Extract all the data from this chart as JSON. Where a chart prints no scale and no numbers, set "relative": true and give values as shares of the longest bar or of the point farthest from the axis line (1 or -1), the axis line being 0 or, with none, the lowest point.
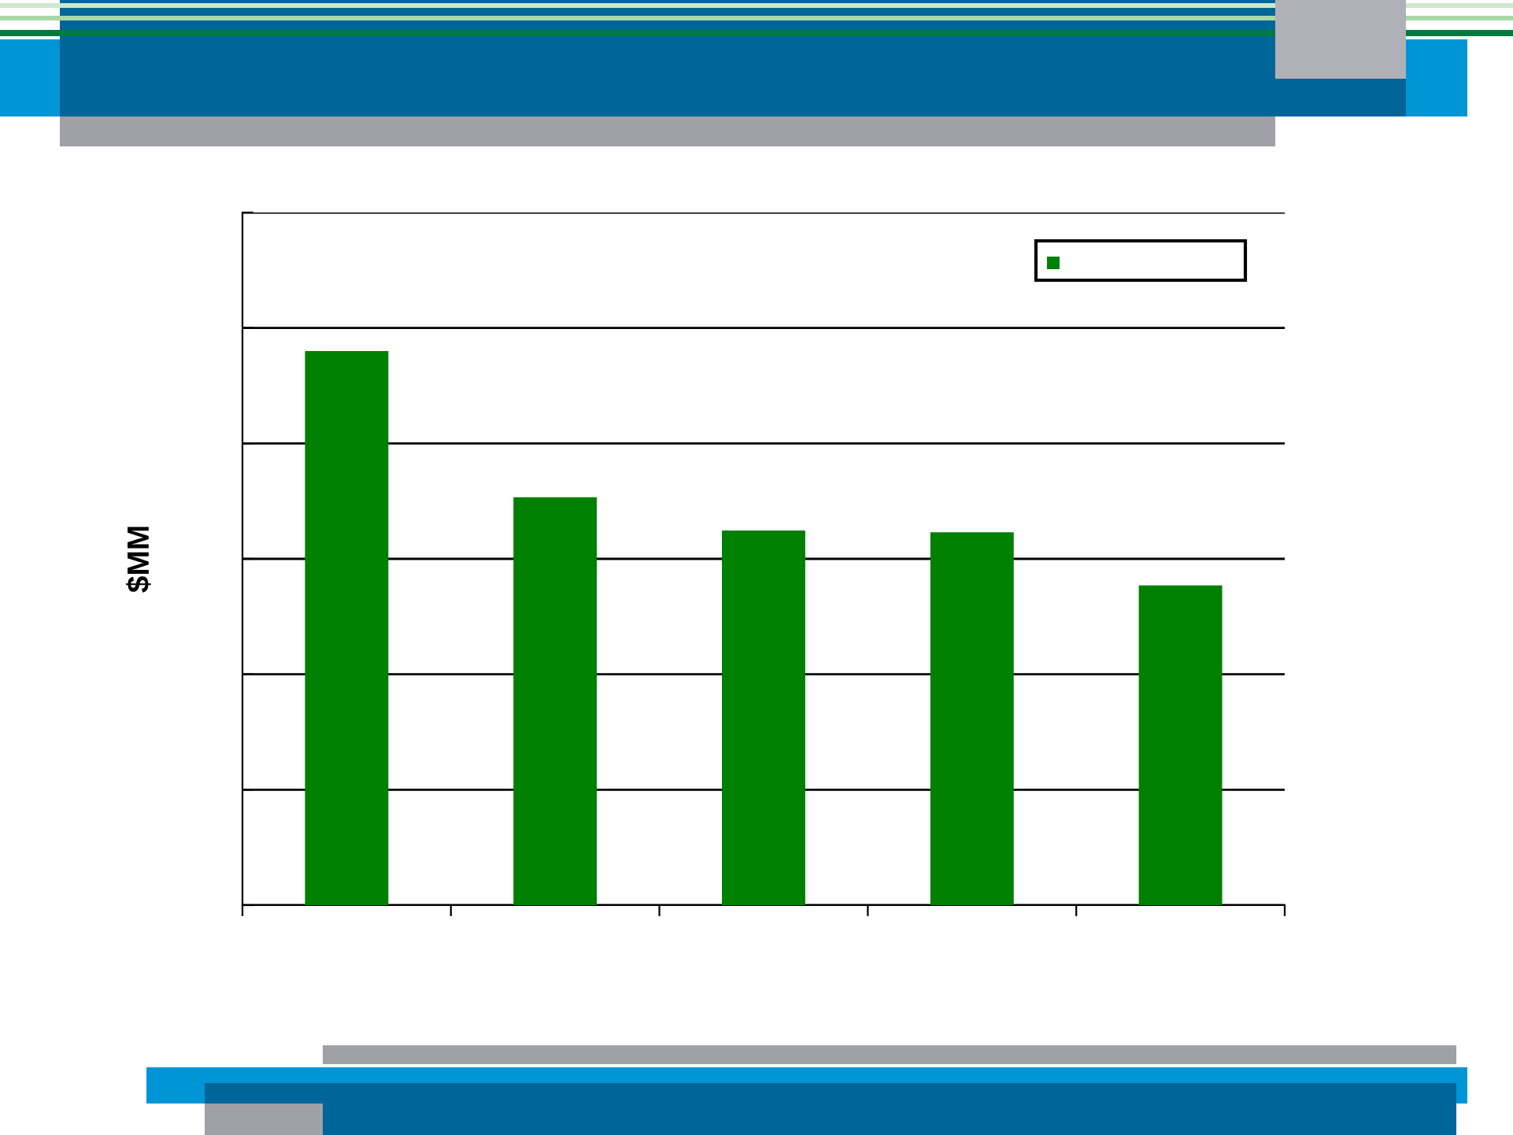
{
  "chart_data": {
    "type": "bar",
    "relative": true,
    "ylabel": "$MM",
    "categories": [
      null,
      null,
      null,
      null,
      null
    ],
    "series": [
      {
        "color": "#008000",
        "values": [
          1,
          0.736,
          0.676,
          0.673,
          0.577
        ]
      }
    ],
    "grid": "y"
  }
}
